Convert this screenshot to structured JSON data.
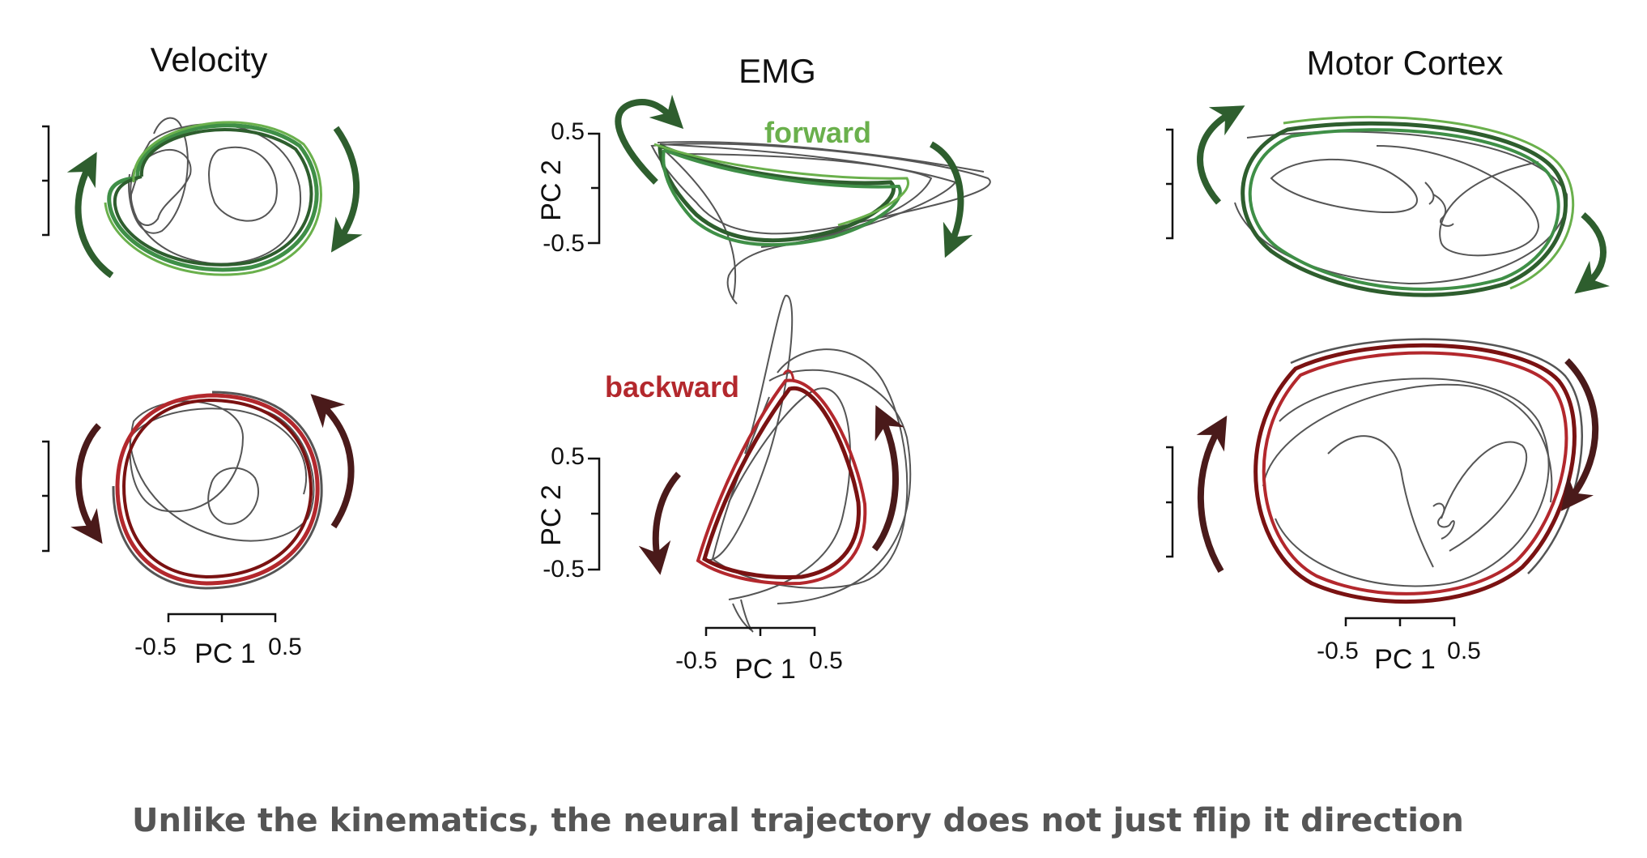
{
  "panels": [
    {
      "title": "Velocity"
    },
    {
      "title": "EMG"
    },
    {
      "title": "Motor Cortex"
    }
  ],
  "labels": {
    "forward": "forward",
    "backward": "backward"
  },
  "axes": {
    "pc1": "PC 1",
    "pc2": "PC 2",
    "tick_neg": "-0.5",
    "tick_pos": "0.5"
  },
  "caption": "Unlike the kinematics, the neural trajectory does not just flip it direction",
  "colors": {
    "forward_dark": "#2e5e2e",
    "forward_mid": "#3f8f47",
    "forward_light": "#6ab04c",
    "backward_dark": "#7a1212",
    "backward_mid": "#b3282d",
    "backward_arrow": "#4a1a1a",
    "trajectory_gray": "#555555",
    "caption": "#555555"
  }
}
